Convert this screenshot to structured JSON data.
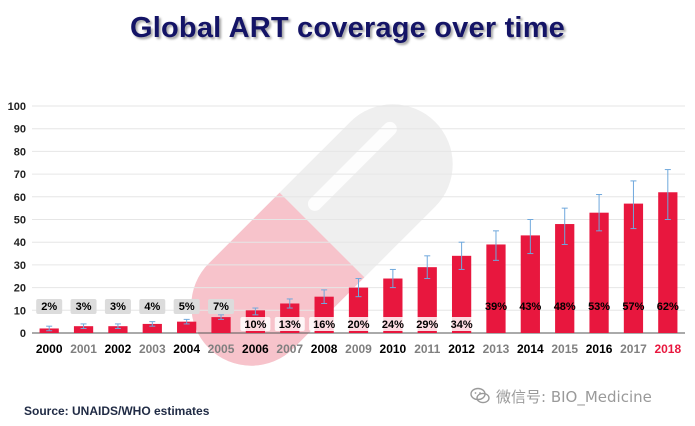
{
  "chart_data": {
    "type": "bar",
    "title": "Global ART coverage over time",
    "categories": [
      "2000",
      "2001",
      "2002",
      "2003",
      "2004",
      "2005",
      "2006",
      "2007",
      "2008",
      "2009",
      "2010",
      "2011",
      "2012",
      "2013",
      "2014",
      "2015",
      "2016",
      "2017",
      "2018"
    ],
    "values": [
      2,
      3,
      3,
      4,
      5,
      7,
      10,
      13,
      16,
      20,
      24,
      29,
      34,
      39,
      43,
      48,
      53,
      57,
      62
    ],
    "value_labels": [
      "2%",
      "3%",
      "3%",
      "4%",
      "5%",
      "7%",
      "10%",
      "13%",
      "16%",
      "20%",
      "24%",
      "29%",
      "34%",
      "39%",
      "43%",
      "48%",
      "53%",
      "57%",
      "62%"
    ],
    "error_low": [
      1,
      2,
      2,
      3,
      4,
      6,
      8,
      11,
      13,
      16,
      20,
      24,
      28,
      32,
      35,
      39,
      45,
      46,
      50
    ],
    "error_high": [
      3,
      4,
      4,
      5,
      6,
      8,
      11,
      15,
      19,
      24,
      28,
      34,
      40,
      45,
      50,
      55,
      61,
      67,
      72
    ],
    "ylim": [
      0,
      100
    ],
    "yticks": [
      "0",
      "10",
      "20",
      "30",
      "40",
      "50",
      "60",
      "70",
      "80",
      "90",
      "100"
    ],
    "xlabel": "",
    "ylabel": "",
    "grid": true,
    "highlight_category": "2018",
    "colors": {
      "bar": "#e8173e",
      "error_bar": "#6fa8dc",
      "grid": "#e6e6e6",
      "label_bg": "#dcdcdc",
      "tick_bold": "#000000",
      "tick_muted": "#7f7f7f",
      "highlight": "#e8173e",
      "title": "#141466"
    }
  },
  "source": "Source: UNAIDS/WHO estimates",
  "watermark": {
    "text": "微信号: BIO_Medicine",
    "icon": "wechat-icon"
  }
}
